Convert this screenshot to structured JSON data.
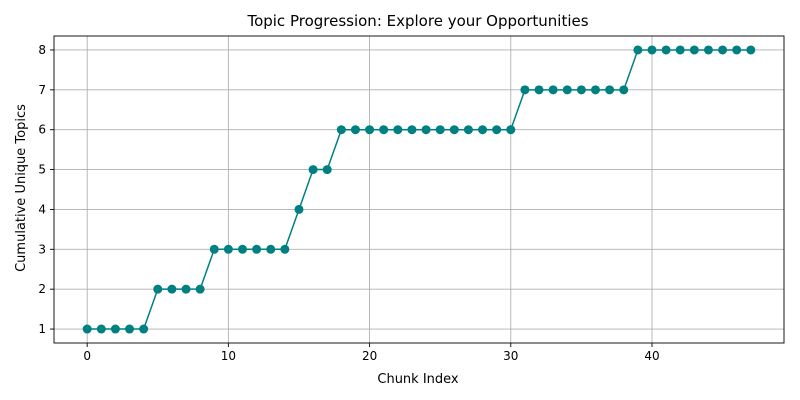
{
  "chart_data": {
    "type": "line",
    "title": "Topic Progression: Explore your Opportunities",
    "xlabel": "Chunk Index",
    "ylabel": "Cumulative Unique Topics",
    "x": [
      0,
      1,
      2,
      3,
      4,
      5,
      6,
      7,
      8,
      9,
      10,
      11,
      12,
      13,
      14,
      15,
      16,
      17,
      18,
      19,
      20,
      21,
      22,
      23,
      24,
      25,
      26,
      27,
      28,
      29,
      30,
      31,
      32,
      33,
      34,
      35,
      36,
      37,
      38,
      39,
      40,
      41,
      42,
      43,
      44,
      45,
      46,
      47
    ],
    "series": [
      {
        "values": [
          1,
          1,
          1,
          1,
          1,
          2,
          2,
          2,
          2,
          3,
          3,
          3,
          3,
          3,
          3,
          4,
          5,
          5,
          6,
          6,
          6,
          6,
          6,
          6,
          6,
          6,
          6,
          6,
          6,
          6,
          6,
          7,
          7,
          7,
          7,
          7,
          7,
          7,
          7,
          8,
          8,
          8,
          8,
          8,
          8,
          8,
          8,
          8
        ],
        "color": "#008080",
        "marker": "circle"
      }
    ],
    "xlim": [
      -2.35,
      49.35
    ],
    "ylim": [
      0.65,
      8.35
    ],
    "xticks": [
      0,
      10,
      20,
      30,
      40
    ],
    "yticks": [
      1,
      2,
      3,
      4,
      5,
      6,
      7,
      8
    ],
    "grid": true
  }
}
